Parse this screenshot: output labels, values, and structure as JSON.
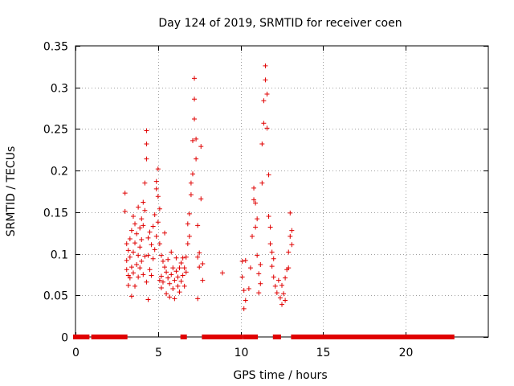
{
  "chart_data": {
    "type": "scatter",
    "title": "Day 124 of 2019, SRMTID for receiver coen",
    "xlabel": "GPS time / hours",
    "ylabel": "SRMTID / TECUs",
    "xlim": [
      0,
      25
    ],
    "ylim": [
      0,
      0.35
    ],
    "xticks": [
      0,
      5,
      10,
      15,
      20
    ],
    "xtick_labels": [
      "0",
      "5",
      "10",
      "15",
      "20"
    ],
    "yticks": [
      0,
      0.05,
      0.1,
      0.15,
      0.2,
      0.25,
      0.3,
      0.35
    ],
    "ytick_labels": [
      "0",
      "0.05",
      "0.1",
      "0.15",
      "0.2",
      "0.25",
      "0.3",
      "0.35"
    ],
    "grid": true,
    "marker": "+",
    "color": "#e00000",
    "zero_segments": [
      [
        0.0,
        0.7
      ],
      [
        1.1,
        3.0
      ],
      [
        6.5,
        6.6
      ],
      [
        7.8,
        10.0
      ],
      [
        10.3,
        10.9
      ],
      [
        12.1,
        12.3
      ],
      [
        13.2,
        22.8
      ]
    ],
    "series": [
      {
        "name": "SRMTID",
        "points": [
          [
            3.0,
            0.173
          ],
          [
            3.0,
            0.151
          ],
          [
            3.1,
            0.112
          ],
          [
            3.1,
            0.092
          ],
          [
            3.1,
            0.081
          ],
          [
            3.2,
            0.074
          ],
          [
            3.2,
            0.104
          ],
          [
            3.2,
            0.062
          ],
          [
            3.3,
            0.096
          ],
          [
            3.3,
            0.118
          ],
          [
            3.3,
            0.071
          ],
          [
            3.4,
            0.084
          ],
          [
            3.4,
            0.128
          ],
          [
            3.4,
            0.049
          ],
          [
            3.5,
            0.102
          ],
          [
            3.5,
            0.145
          ],
          [
            3.5,
            0.077
          ],
          [
            3.6,
            0.113
          ],
          [
            3.6,
            0.136
          ],
          [
            3.6,
            0.061
          ],
          [
            3.7,
            0.087
          ],
          [
            3.7,
            0.124
          ],
          [
            3.8,
            0.098
          ],
          [
            3.8,
            0.156
          ],
          [
            3.8,
            0.072
          ],
          [
            3.9,
            0.131
          ],
          [
            3.9,
            0.108
          ],
          [
            3.9,
            0.083
          ],
          [
            4.0,
            0.142
          ],
          [
            4.0,
            0.117
          ],
          [
            4.0,
            0.091
          ],
          [
            4.1,
            0.162
          ],
          [
            4.1,
            0.134
          ],
          [
            4.1,
            0.075
          ],
          [
            4.2,
            0.185
          ],
          [
            4.2,
            0.152
          ],
          [
            4.2,
            0.097
          ],
          [
            4.3,
            0.232
          ],
          [
            4.3,
            0.248
          ],
          [
            4.3,
            0.214
          ],
          [
            4.3,
            0.066
          ],
          [
            4.4,
            0.119
          ],
          [
            4.4,
            0.098
          ],
          [
            4.4,
            0.045
          ],
          [
            4.5,
            0.126
          ],
          [
            4.5,
            0.081
          ],
          [
            4.6,
            0.111
          ],
          [
            4.6,
            0.074
          ],
          [
            4.7,
            0.094
          ],
          [
            4.7,
            0.133
          ],
          [
            4.8,
            0.105
          ],
          [
            4.8,
            0.147
          ],
          [
            4.9,
            0.187
          ],
          [
            4.9,
            0.178
          ],
          [
            4.9,
            0.121
          ],
          [
            5.0,
            0.202
          ],
          [
            5.0,
            0.169
          ],
          [
            5.0,
            0.138
          ],
          [
            5.1,
            0.154
          ],
          [
            5.1,
            0.112
          ],
          [
            5.1,
            0.068
          ],
          [
            5.2,
            0.098
          ],
          [
            5.2,
            0.073
          ],
          [
            5.2,
            0.059
          ],
          [
            5.3,
            0.091
          ],
          [
            5.3,
            0.066
          ],
          [
            5.4,
            0.084
          ],
          [
            5.4,
            0.125
          ],
          [
            5.5,
            0.078
          ],
          [
            5.5,
            0.052
          ],
          [
            5.6,
            0.071
          ],
          [
            5.6,
            0.093
          ],
          [
            5.7,
            0.064
          ],
          [
            5.7,
            0.048
          ],
          [
            5.8,
            0.075
          ],
          [
            5.8,
            0.102
          ],
          [
            5.9,
            0.058
          ],
          [
            5.9,
            0.083
          ],
          [
            6.0,
            0.068
          ],
          [
            6.0,
            0.046
          ],
          [
            6.1,
            0.079
          ],
          [
            6.1,
            0.095
          ],
          [
            6.2,
            0.061
          ],
          [
            6.2,
            0.072
          ],
          [
            6.3,
            0.083
          ],
          [
            6.3,
            0.054
          ],
          [
            6.4,
            0.089
          ],
          [
            6.4,
            0.067
          ],
          [
            6.5,
            0.074
          ],
          [
            6.5,
            0.095
          ],
          [
            6.6,
            0.083
          ],
          [
            6.6,
            0.061
          ],
          [
            6.7,
            0.096
          ],
          [
            6.7,
            0.078
          ],
          [
            6.8,
            0.112
          ],
          [
            6.8,
            0.136
          ],
          [
            6.9,
            0.148
          ],
          [
            6.9,
            0.121
          ],
          [
            7.0,
            0.171
          ],
          [
            7.0,
            0.185
          ],
          [
            7.1,
            0.196
          ],
          [
            7.1,
            0.236
          ],
          [
            7.2,
            0.262
          ],
          [
            7.2,
            0.311
          ],
          [
            7.2,
            0.286
          ],
          [
            7.3,
            0.238
          ],
          [
            7.3,
            0.214
          ],
          [
            7.4,
            0.134
          ],
          [
            7.4,
            0.096
          ],
          [
            7.4,
            0.046
          ],
          [
            7.5,
            0.084
          ],
          [
            7.5,
            0.101
          ],
          [
            7.6,
            0.166
          ],
          [
            7.6,
            0.229
          ],
          [
            7.7,
            0.088
          ],
          [
            7.7,
            0.068
          ],
          [
            8.9,
            0.077
          ],
          [
            10.1,
            0.091
          ],
          [
            10.1,
            0.072
          ],
          [
            10.2,
            0.056
          ],
          [
            10.2,
            0.034
          ],
          [
            10.3,
            0.092
          ],
          [
            10.3,
            0.044
          ],
          [
            10.5,
            0.058
          ],
          [
            10.6,
            0.083
          ],
          [
            10.7,
            0.121
          ],
          [
            10.8,
            0.165
          ],
          [
            10.8,
            0.179
          ],
          [
            10.9,
            0.161
          ],
          [
            10.9,
            0.132
          ],
          [
            11.0,
            0.142
          ],
          [
            11.0,
            0.098
          ],
          [
            11.1,
            0.076
          ],
          [
            11.1,
            0.053
          ],
          [
            11.2,
            0.064
          ],
          [
            11.2,
            0.087
          ],
          [
            11.3,
            0.185
          ],
          [
            11.3,
            0.232
          ],
          [
            11.4,
            0.284
          ],
          [
            11.4,
            0.257
          ],
          [
            11.5,
            0.326
          ],
          [
            11.5,
            0.309
          ],
          [
            11.6,
            0.292
          ],
          [
            11.6,
            0.251
          ],
          [
            11.7,
            0.195
          ],
          [
            11.7,
            0.145
          ],
          [
            11.8,
            0.112
          ],
          [
            11.8,
            0.132
          ],
          [
            11.9,
            0.102
          ],
          [
            11.9,
            0.085
          ],
          [
            12.0,
            0.072
          ],
          [
            12.0,
            0.094
          ],
          [
            12.1,
            0.061
          ],
          [
            12.2,
            0.053
          ],
          [
            12.3,
            0.068
          ],
          [
            12.4,
            0.047
          ],
          [
            12.5,
            0.039
          ],
          [
            12.5,
            0.062
          ],
          [
            12.6,
            0.052
          ],
          [
            12.7,
            0.071
          ],
          [
            12.7,
            0.044
          ],
          [
            12.8,
            0.081
          ],
          [
            12.9,
            0.102
          ],
          [
            12.9,
            0.083
          ],
          [
            13.0,
            0.121
          ],
          [
            13.0,
            0.149
          ],
          [
            13.1,
            0.128
          ],
          [
            13.1,
            0.111
          ]
        ]
      }
    ]
  }
}
